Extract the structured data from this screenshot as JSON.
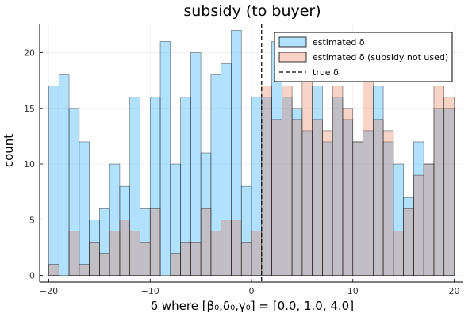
{
  "chart_data": {
    "type": "bar",
    "title": "subsidy (to buyer)",
    "xlabel": "δ where [β₀,δ₀,γ₀] = [0.0, 1.0, 4.0]",
    "ylabel": "count",
    "xlim": [
      -20.9,
      20.9
    ],
    "ylim": [
      -0.6,
      22.6
    ],
    "xticks": [
      -20,
      -10,
      0,
      10,
      20
    ],
    "yticks": [
      0,
      5,
      10,
      15,
      20
    ],
    "grid": true,
    "legend_position": "top-right",
    "bin_width": 1,
    "bin_starts": [
      -20,
      -19,
      -18,
      -17,
      -16,
      -15,
      -14,
      -13,
      -12,
      -11,
      -10,
      -9,
      -8,
      -7,
      -6,
      -5,
      -4,
      -3,
      -2,
      -1,
      0,
      1,
      2,
      3,
      4,
      5,
      6,
      7,
      8,
      9,
      10,
      11,
      12,
      13,
      14,
      15,
      16,
      17,
      18,
      19
    ],
    "series": [
      {
        "name": "estimated δ",
        "color": "#009AFA",
        "values": [
          17,
          18,
          15,
          12,
          5,
          6,
          10,
          8,
          16,
          6,
          16,
          21,
          10,
          16,
          20,
          11,
          18,
          19,
          22,
          8,
          16,
          16,
          21,
          16,
          15,
          13,
          17,
          12,
          16,
          14,
          12,
          13,
          17,
          12,
          10,
          7,
          12,
          10,
          15,
          15
        ]
      },
      {
        "name": "estimated δ (subsidy not used)",
        "color": "#E36F47",
        "values": [
          1,
          0,
          4,
          1,
          3,
          2,
          4,
          5,
          4,
          3,
          6,
          0,
          2,
          3,
          3,
          6,
          4,
          5,
          5,
          3,
          4,
          17,
          14,
          17,
          14,
          19,
          14,
          13,
          17,
          15,
          12,
          18,
          14,
          13,
          4,
          6,
          9,
          10,
          17,
          16
        ]
      }
    ],
    "reference_line": {
      "name": "true δ",
      "x": 1
    }
  }
}
